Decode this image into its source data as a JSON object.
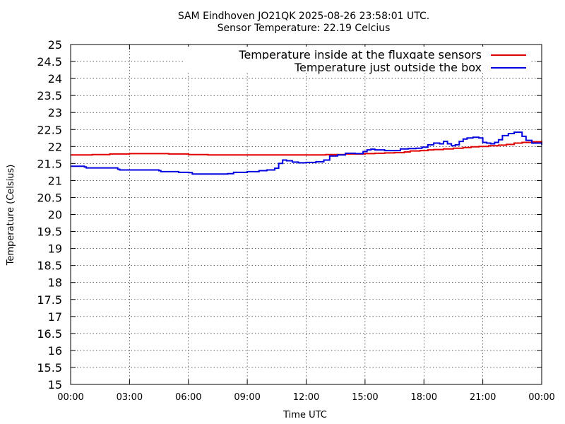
{
  "chart_data": {
    "type": "line",
    "title_line1": "SAM Eindhoven JO21QK 2025-08-26 23:58:01 UTC.",
    "title_line2": "Sensor Temperature: 22.19 Celcius",
    "xlabel": "Time UTC",
    "ylabel": "Temperature (Celsius)",
    "xlim": [
      0,
      24
    ],
    "ylim": [
      15,
      25
    ],
    "x_ticks": [
      0,
      3,
      6,
      9,
      12,
      15,
      18,
      21,
      24
    ],
    "x_tick_labels": [
      "00:00",
      "03:00",
      "06:00",
      "09:00",
      "12:00",
      "15:00",
      "18:00",
      "21:00",
      "00:00"
    ],
    "y_ticks": [
      15,
      15.5,
      16,
      16.5,
      17,
      17.5,
      18,
      18.5,
      19,
      19.5,
      20,
      20.5,
      21,
      21.5,
      22,
      22.5,
      23,
      23.5,
      24,
      24.5,
      25
    ],
    "y_tick_labels": [
      "15",
      "15.5",
      "16",
      "16.5",
      "17",
      "17.5",
      "18",
      "18.5",
      "19",
      "19.5",
      "20",
      "20.5",
      "21",
      "21.5",
      "22",
      "22.5",
      "23",
      "23.5",
      "24",
      "24.5",
      "25"
    ],
    "grid": true,
    "legend_position": "top-right",
    "series": [
      {
        "name": "Temperature inside at the fluxgate sensors",
        "color": "#e00000",
        "x": [
          0,
          1.1,
          2.0,
          3.0,
          4.0,
          5.0,
          6.0,
          7.0,
          8.0,
          9.0,
          10.0,
          11.0,
          12.0,
          13.0,
          14.0,
          14.5,
          15.0,
          15.5,
          16.0,
          16.5,
          17.0,
          17.3,
          17.8,
          18.2,
          18.5,
          19.0,
          19.5,
          20.0,
          20.4,
          20.8,
          21.3,
          21.8,
          22.2,
          22.6,
          23.0,
          23.5,
          24.0
        ],
        "y": [
          21.75,
          21.76,
          21.78,
          21.79,
          21.79,
          21.78,
          21.76,
          21.75,
          21.75,
          21.75,
          21.75,
          21.75,
          21.75,
          21.76,
          21.78,
          21.78,
          21.79,
          21.8,
          21.81,
          21.82,
          21.84,
          21.87,
          21.88,
          21.9,
          21.91,
          21.93,
          21.95,
          21.97,
          21.99,
          22.0,
          22.02,
          22.04,
          22.06,
          22.1,
          22.12,
          22.14,
          22.17
        ]
      },
      {
        "name": "Temperature just outside the box",
        "color": "#0000e0",
        "x": [
          0,
          0.7,
          0.8,
          2.0,
          2.4,
          2.5,
          3.5,
          4.5,
          4.6,
          5.5,
          6.0,
          6.2,
          7.0,
          8.0,
          8.3,
          9.0,
          9.6,
          10.0,
          10.4,
          10.6,
          10.8,
          11.0,
          11.3,
          11.6,
          12.0,
          12.5,
          12.9,
          13.2,
          13.6,
          14.0,
          14.5,
          14.9,
          15.1,
          15.3,
          15.5,
          16.0,
          16.5,
          16.8,
          17.2,
          17.6,
          17.9,
          18.2,
          18.5,
          18.8,
          19.0,
          19.2,
          19.4,
          19.6,
          19.8,
          20.0,
          20.2,
          20.5,
          20.8,
          21.0,
          21.2,
          21.4,
          21.6,
          21.8,
          22.0,
          22.3,
          22.6,
          22.8,
          23.0,
          23.2,
          23.5,
          24.0
        ],
        "y": [
          21.42,
          21.4,
          21.37,
          21.37,
          21.33,
          21.31,
          21.31,
          21.29,
          21.26,
          21.24,
          21.23,
          21.19,
          21.19,
          21.2,
          21.24,
          21.26,
          21.29,
          21.31,
          21.36,
          21.5,
          21.6,
          21.58,
          21.54,
          21.52,
          21.53,
          21.55,
          21.6,
          21.72,
          21.75,
          21.8,
          21.79,
          21.85,
          21.9,
          21.92,
          21.9,
          21.88,
          21.88,
          21.93,
          21.94,
          21.95,
          21.98,
          22.05,
          22.1,
          22.08,
          22.15,
          22.08,
          22.02,
          22.05,
          22.15,
          22.22,
          22.25,
          22.27,
          22.25,
          22.12,
          22.1,
          22.08,
          22.12,
          22.2,
          22.32,
          22.38,
          22.42,
          22.42,
          22.3,
          22.18,
          22.1,
          22.05
        ]
      }
    ]
  }
}
